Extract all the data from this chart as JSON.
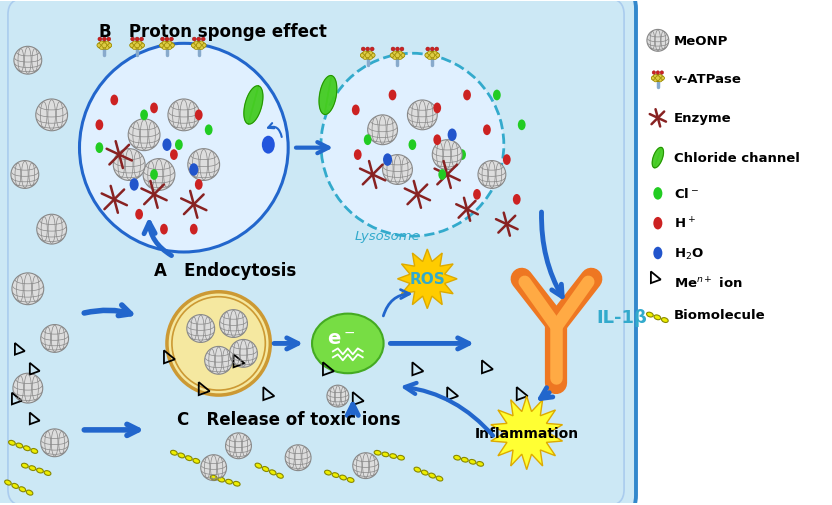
{
  "cell_color": "#cce8f5",
  "cell_border": "#3388cc",
  "bg_color": "#ffffff",
  "title_B": "B   Proton sponge effect",
  "title_A": "A   Endocytosis",
  "title_C": "C   Release of toxic ions",
  "arrow_color": "#2266cc",
  "lysosome_text": "Lysosome",
  "lysosome_color": "#33aacc",
  "ros_color": "#ffcc00",
  "ros_text_color": "#33aacc",
  "il1b_color": "#33aacc",
  "electron_color": "#66dd44",
  "endocytosis_fill": "#f5e8a0",
  "cl_color": "#22cc22",
  "h_color": "#cc2222",
  "water_color": "#2255cc",
  "enzyme_color": "#882222",
  "vatpase_cap": "#ddcc44",
  "vatpase_stem": "#88aacc",
  "chloride_channel_color": "#44cc22",
  "biomolecule_fill": "#eeee00",
  "biomolecule_edge": "#888800",
  "meOnp_fill": "#dddddd",
  "meOnp_edge": "#888888",
  "ab_outer": "#ee7722",
  "ab_inner": "#ffaa44",
  "inflammation_color": "#ffff33"
}
